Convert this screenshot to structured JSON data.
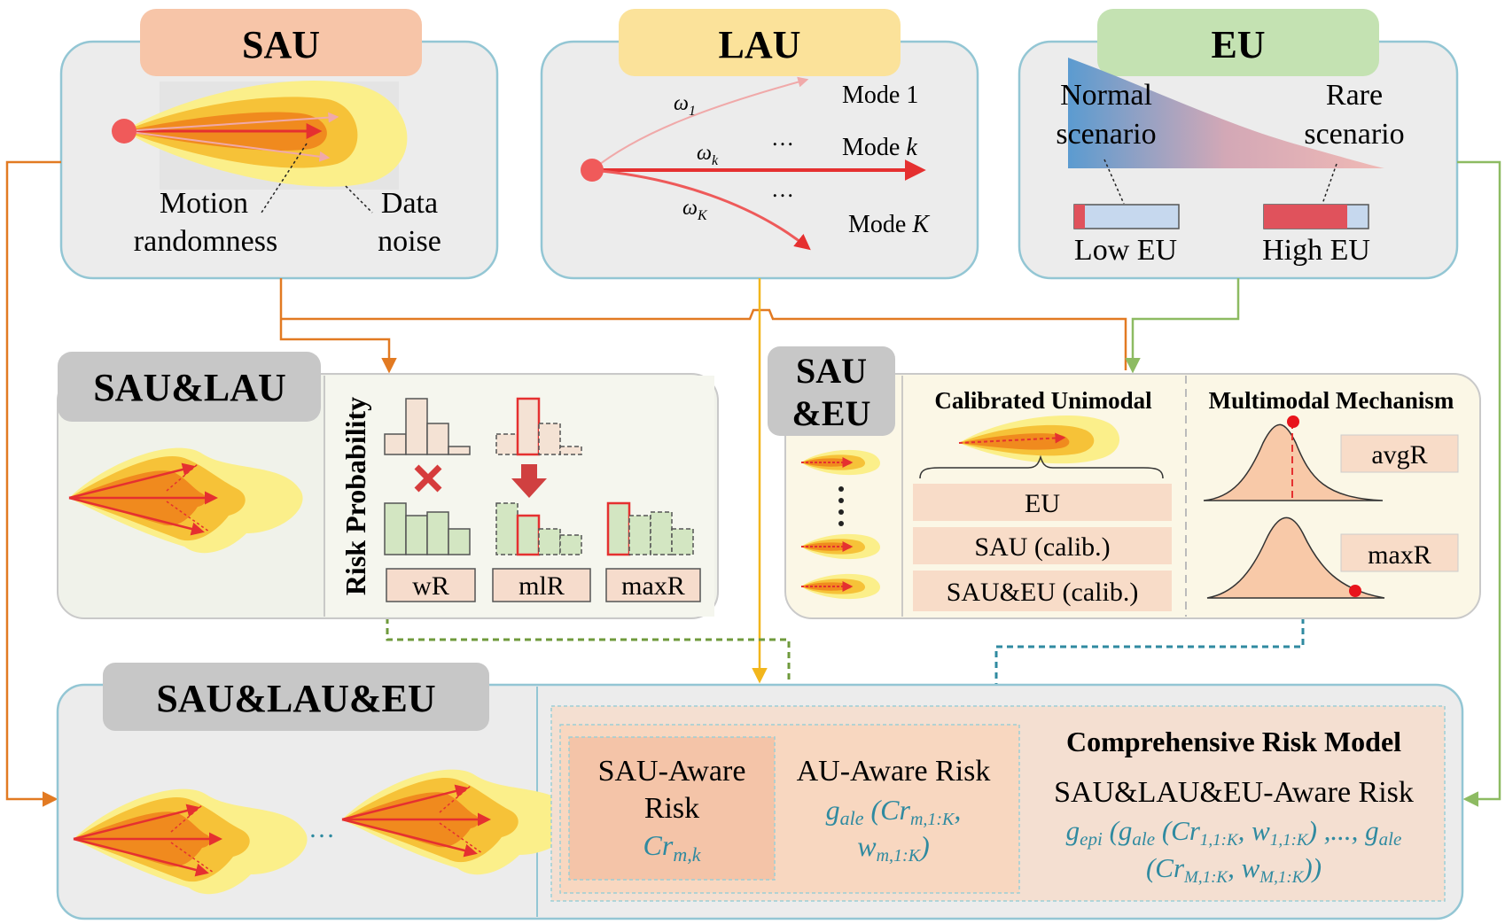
{
  "colors": {
    "sau": "#f7c5a8",
    "lau": "#fbe29a",
    "eu": "#c4e2b2",
    "gray_tab": "#c7c7c7",
    "panel_fill": "#ececec",
    "panel_border": "#93c6d4",
    "orange_line": "#e27a22",
    "yellow_line": "#f2b61c",
    "green_line": "#8dbb62",
    "teal_line": "#2f8aa0",
    "red": "#e53030",
    "teal_text": "#2f8aa0"
  },
  "sau": {
    "title": "SAU",
    "motion": "Motion",
    "randomness": "randomness",
    "data": "Data",
    "noise": "noise"
  },
  "lau": {
    "title": "LAU",
    "mode1": "Mode 1",
    "modek": "Mode",
    "modek_var": "k",
    "modeK": "Mode",
    "modeK_var": "K",
    "w1": "ω",
    "w1_sub": "1",
    "wk": "ω",
    "wk_sub": "k",
    "wK": "ω",
    "wK_sub": "K",
    "dots": "…"
  },
  "eu": {
    "title": "EU",
    "normal": "Normal",
    "normal2": "scenario",
    "rare": "Rare",
    "rare2": "scenario",
    "low": "Low EU",
    "high": "High EU"
  },
  "sau_lau": {
    "title": "SAU&LAU",
    "axis": "Risk  Probability",
    "wr": "wR",
    "mlr": "mlR",
    "maxr": "maxR"
  },
  "sau_eu": {
    "title1": "SAU",
    "title2": "&EU",
    "calibrated": "Calibrated Unimodal",
    "multimodal": "Multimodal Mechanism",
    "eu_box": "EU",
    "sau_calib": "SAU (calib.)",
    "saueu_calib": "SAU&EU (calib.)",
    "avgr": "avgR",
    "maxr": "maxR"
  },
  "sau_lau_eu": {
    "title": "SAU&LAU&EU",
    "dots": "…",
    "sau_aware1": "SAU-Aware",
    "sau_aware2": "Risk",
    "cr": "Cr",
    "cr_sub": "m,k",
    "au_aware": "AU-Aware Risk",
    "g_ale": "g",
    "g_ale_sub": "ale",
    "g_ale_arg": " (Cr",
    "g_ale_arg_sub": "m,1:K",
    "g_ale_comma": ",",
    "w_line": "w",
    "w_line_sub": "m,1:K",
    "w_close": ")",
    "comp_title": "Comprehensive Risk Model",
    "comp_sub": "SAU&LAU&EU-Aware Risk",
    "gepi": "g",
    "gepi_sub": "epi",
    "gepi_mid1": " (g",
    "gepi_mid1_sub": "ale",
    "gepi_mid2": " (Cr",
    "gepi_mid2_sub": "1,1:K",
    "gepi_mid3": ", w",
    "gepi_mid3_sub": "1,1:K",
    "gepi_mid4": ") ,..., g",
    "gepi_mid4_sub": "ale",
    "gepi_l2a": "(Cr",
    "gepi_l2a_sub": "M,1:K",
    "gepi_l2b": ", w",
    "gepi_l2b_sub": "M,1:K",
    "gepi_l2c": "))"
  }
}
